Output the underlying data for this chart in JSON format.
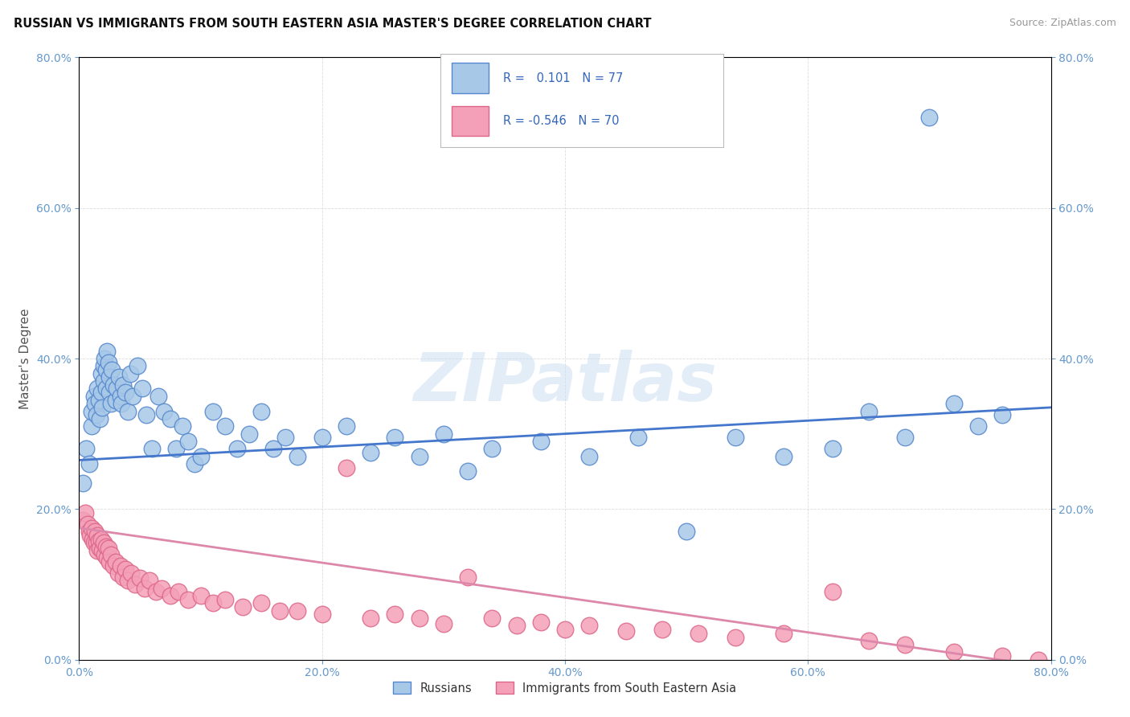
{
  "title": "RUSSIAN VS IMMIGRANTS FROM SOUTH EASTERN ASIA MASTER'S DEGREE CORRELATION CHART",
  "source": "Source: ZipAtlas.com",
  "ylabel": "Master's Degree",
  "r_russian": 0.101,
  "n_russian": 77,
  "r_sea": -0.546,
  "n_sea": 70,
  "xmin": 0.0,
  "xmax": 0.8,
  "ymin": 0.0,
  "ymax": 0.8,
  "yticks": [
    0.0,
    0.2,
    0.4,
    0.6,
    0.8
  ],
  "xticks": [
    0.0,
    0.2,
    0.4,
    0.6,
    0.8
  ],
  "russian_color": "#a8c8e8",
  "russian_edge_color": "#5588cc",
  "sea_color": "#f4a0b8",
  "sea_edge_color": "#dd6688",
  "russian_line_color": "#4477cc",
  "sea_line_color": "#dd88aa",
  "background_color": "#ffffff",
  "grid_color": "#dddddd",
  "tick_color": "#6699cc",
  "watermark": "ZIPatlas",
  "watermark_color": "#c8ddf0",
  "russians_x": [
    0.003,
    0.006,
    0.008,
    0.01,
    0.01,
    0.012,
    0.013,
    0.014,
    0.015,
    0.016,
    0.017,
    0.018,
    0.018,
    0.019,
    0.02,
    0.02,
    0.021,
    0.022,
    0.022,
    0.023,
    0.024,
    0.025,
    0.025,
    0.026,
    0.027,
    0.028,
    0.03,
    0.031,
    0.033,
    0.034,
    0.035,
    0.036,
    0.038,
    0.04,
    0.042,
    0.044,
    0.048,
    0.052,
    0.055,
    0.06,
    0.065,
    0.07,
    0.075,
    0.08,
    0.085,
    0.09,
    0.095,
    0.1,
    0.11,
    0.12,
    0.13,
    0.14,
    0.15,
    0.16,
    0.17,
    0.18,
    0.2,
    0.22,
    0.24,
    0.26,
    0.28,
    0.3,
    0.32,
    0.34,
    0.38,
    0.42,
    0.46,
    0.5,
    0.54,
    0.58,
    0.62,
    0.65,
    0.68,
    0.7,
    0.72,
    0.74,
    0.76
  ],
  "russians_y": [
    0.235,
    0.28,
    0.26,
    0.31,
    0.33,
    0.35,
    0.34,
    0.325,
    0.36,
    0.345,
    0.32,
    0.38,
    0.355,
    0.335,
    0.39,
    0.37,
    0.4,
    0.385,
    0.36,
    0.41,
    0.395,
    0.375,
    0.355,
    0.34,
    0.385,
    0.365,
    0.345,
    0.36,
    0.375,
    0.35,
    0.34,
    0.365,
    0.355,
    0.33,
    0.38,
    0.35,
    0.39,
    0.36,
    0.325,
    0.28,
    0.35,
    0.33,
    0.32,
    0.28,
    0.31,
    0.29,
    0.26,
    0.27,
    0.33,
    0.31,
    0.28,
    0.3,
    0.33,
    0.28,
    0.295,
    0.27,
    0.295,
    0.31,
    0.275,
    0.295,
    0.27,
    0.3,
    0.25,
    0.28,
    0.29,
    0.27,
    0.295,
    0.17,
    0.295,
    0.27,
    0.28,
    0.33,
    0.295,
    0.72,
    0.34,
    0.31,
    0.325
  ],
  "sea_x": [
    0.003,
    0.005,
    0.007,
    0.008,
    0.009,
    0.01,
    0.011,
    0.012,
    0.013,
    0.014,
    0.015,
    0.015,
    0.016,
    0.017,
    0.018,
    0.019,
    0.02,
    0.021,
    0.022,
    0.023,
    0.024,
    0.025,
    0.026,
    0.028,
    0.03,
    0.032,
    0.034,
    0.036,
    0.038,
    0.04,
    0.043,
    0.046,
    0.05,
    0.054,
    0.058,
    0.063,
    0.068,
    0.075,
    0.082,
    0.09,
    0.1,
    0.11,
    0.12,
    0.135,
    0.15,
    0.165,
    0.18,
    0.2,
    0.22,
    0.24,
    0.26,
    0.28,
    0.3,
    0.32,
    0.34,
    0.36,
    0.38,
    0.4,
    0.42,
    0.45,
    0.48,
    0.51,
    0.54,
    0.58,
    0.62,
    0.65,
    0.68,
    0.72,
    0.76,
    0.79
  ],
  "sea_y": [
    0.185,
    0.195,
    0.18,
    0.17,
    0.165,
    0.175,
    0.16,
    0.155,
    0.17,
    0.155,
    0.165,
    0.145,
    0.158,
    0.148,
    0.16,
    0.145,
    0.155,
    0.14,
    0.15,
    0.135,
    0.148,
    0.13,
    0.14,
    0.125,
    0.13,
    0.115,
    0.125,
    0.11,
    0.12,
    0.105,
    0.115,
    0.1,
    0.108,
    0.095,
    0.105,
    0.09,
    0.095,
    0.085,
    0.09,
    0.08,
    0.085,
    0.075,
    0.08,
    0.07,
    0.075,
    0.065,
    0.065,
    0.06,
    0.255,
    0.055,
    0.06,
    0.055,
    0.048,
    0.11,
    0.055,
    0.045,
    0.05,
    0.04,
    0.045,
    0.038,
    0.04,
    0.035,
    0.03,
    0.035,
    0.09,
    0.025,
    0.02,
    0.01,
    0.005,
    0.0
  ],
  "r_line_russian_x0": 0.0,
  "r_line_russian_y0": 0.265,
  "r_line_russian_x1": 0.8,
  "r_line_russian_y1": 0.335,
  "r_line_sea_x0": 0.0,
  "r_line_sea_y0": 0.175,
  "r_line_sea_x1": 0.8,
  "r_line_sea_y1": -0.01
}
